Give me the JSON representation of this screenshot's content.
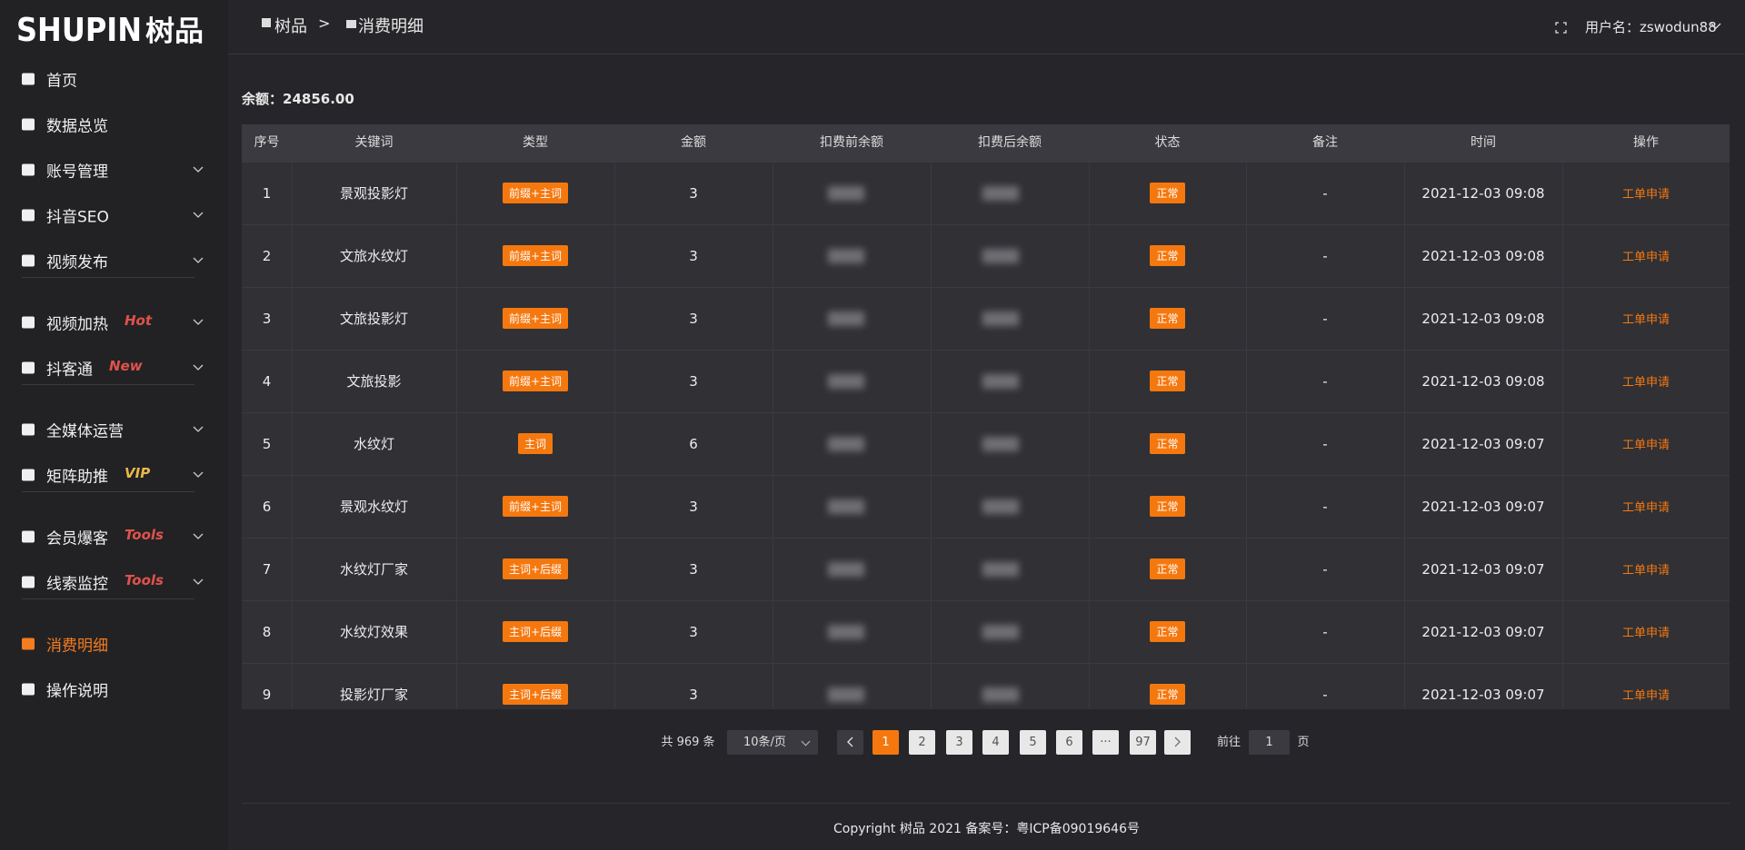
{
  "logo": {
    "text": "SHUPIN",
    "cn": "树品"
  },
  "breadcrumb": {
    "home": "树品",
    "separator": ">",
    "current": "消费明细"
  },
  "user": "用户名：zswodun88",
  "sidebar": {
    "groups": [
      {
        "items": [
          {
            "label": "首页"
          },
          {
            "label": "数据总览"
          },
          {
            "label": "账号管理",
            "expandable": true
          },
          {
            "label": "抖音SEO",
            "expandable": true
          },
          {
            "label": "视频发布",
            "expandable": true
          }
        ]
      },
      {
        "items": [
          {
            "label": "视频加热",
            "badge": "Hot",
            "badge_color": "#e0524a",
            "expandable": true
          },
          {
            "label": "抖客通",
            "badge": "New",
            "badge_color": "#e0524a",
            "expandable": true
          }
        ]
      },
      {
        "items": [
          {
            "label": "全媒体运营",
            "expandable": true
          },
          {
            "label": "矩阵助推",
            "badge": "VIP",
            "badge_color": "#e8b84a",
            "expandable": true
          }
        ]
      },
      {
        "items": [
          {
            "label": "会员爆客",
            "badge": "Tools",
            "badge_color": "#e0524a",
            "expandable": true
          },
          {
            "label": "线索监控",
            "badge": "Tools",
            "badge_color": "#e0524a",
            "expandable": true
          }
        ]
      },
      {
        "items": [
          {
            "label": "消费明细",
            "active": true
          },
          {
            "label": "操作说明"
          }
        ]
      }
    ]
  },
  "balance": {
    "label": "余额：",
    "value": "24856.00"
  },
  "table": {
    "columns": [
      "序号",
      "关键词",
      "类型",
      "金额",
      "扣费前余额",
      "扣费后余额",
      "状态",
      "备注",
      "时间",
      "操作"
    ],
    "rows": [
      {
        "no": 1,
        "keyword": "景观投影灯",
        "type": "前缀+主词",
        "amount": 3,
        "status": "正常",
        "note": "-",
        "time": "2021-12-03 09:08",
        "action": "工单申请"
      },
      {
        "no": 2,
        "keyword": "文旅水纹灯",
        "type": "前缀+主词",
        "amount": 3,
        "status": "正常",
        "note": "-",
        "time": "2021-12-03 09:08",
        "action": "工单申请"
      },
      {
        "no": 3,
        "keyword": "文旅投影灯",
        "type": "前缀+主词",
        "amount": 3,
        "status": "正常",
        "note": "-",
        "time": "2021-12-03 09:08",
        "action": "工单申请"
      },
      {
        "no": 4,
        "keyword": "文旅投影",
        "type": "前缀+主词",
        "amount": 3,
        "status": "正常",
        "note": "-",
        "time": "2021-12-03 09:08",
        "action": "工单申请"
      },
      {
        "no": 5,
        "keyword": "水纹灯",
        "type": "主词",
        "amount": 6,
        "status": "正常",
        "note": "-",
        "time": "2021-12-03 09:07",
        "action": "工单申请"
      },
      {
        "no": 6,
        "keyword": "景观水纹灯",
        "type": "前缀+主词",
        "amount": 3,
        "status": "正常",
        "note": "-",
        "time": "2021-12-03 09:07",
        "action": "工单申请"
      },
      {
        "no": 7,
        "keyword": "水纹灯厂家",
        "type": "主词+后缀",
        "amount": 3,
        "status": "正常",
        "note": "-",
        "time": "2021-12-03 09:07",
        "action": "工单申请"
      },
      {
        "no": 8,
        "keyword": "水纹灯效果",
        "type": "主词+后缀",
        "amount": 3,
        "status": "正常",
        "note": "-",
        "time": "2021-12-03 09:07",
        "action": "工单申请"
      },
      {
        "no": 9,
        "keyword": "投影灯厂家",
        "type": "主词+后缀",
        "amount": 3,
        "status": "正常",
        "note": "-",
        "time": "2021-12-03 09:07",
        "action": "工单申请"
      }
    ]
  },
  "pagination": {
    "total": "共 969 条",
    "page_size": "10条/页",
    "pages": [
      {
        "label": "1",
        "active": true
      },
      {
        "label": "2"
      },
      {
        "label": "3"
      },
      {
        "label": "4"
      },
      {
        "label": "5"
      },
      {
        "label": "6"
      },
      {
        "label": "···"
      },
      {
        "label": "97"
      }
    ],
    "goto_label": "前往",
    "goto_value": "1",
    "goto_suffix": "页"
  },
  "footer": "Copyright 树品 2021 备案号：粤ICP备09019646号"
}
